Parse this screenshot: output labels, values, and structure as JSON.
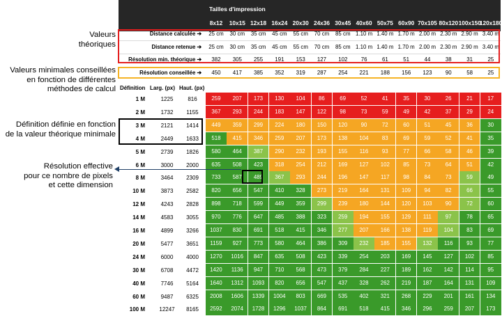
{
  "annotations": {
    "valeurs_theoriques": [
      "Valeurs",
      "théoriques"
    ],
    "valeurs_min": [
      "Valeurs minimales conseillées",
      "en fonction de différentes",
      "méthodes de calcul"
    ],
    "definition": [
      "Définition définie en fonction",
      "de la valeur théorique minimale"
    ],
    "resolution": [
      "Résolution effective",
      "pour ce nombre de pixels",
      "et cette dimension"
    ]
  },
  "header": {
    "title": "Tailles d'impression",
    "sizes": [
      "8x12",
      "10x15",
      "12x18",
      "16x24",
      "20x30",
      "24x36",
      "30x45",
      "40x60",
      "50x75",
      "60x90",
      "70x105",
      "80x120",
      "100x150",
      "120x180"
    ]
  },
  "theory_rows": [
    {
      "label": "Distance calculée ➔",
      "values": [
        "25 cm",
        "30 cm",
        "35 cm",
        "45 cm",
        "55 cm",
        "70 cm",
        "85 cm",
        "1.10 m",
        "1.40 m",
        "1.70 m",
        "2.00 m",
        "2.30 m",
        "2.90 m",
        "3.40 m"
      ]
    },
    {
      "label": "Distance retenue ➔",
      "values": [
        "25 cm",
        "30 cm",
        "35 cm",
        "45 cm",
        "55 cm",
        "70 cm",
        "85 cm",
        "1.10 m",
        "1.40 m",
        "1.70 m",
        "2.00 m",
        "2.30 m",
        "2.90 m",
        "3.40 m"
      ]
    },
    {
      "label": "Résolution min. théorique ➔",
      "values": [
        "382",
        "305",
        "255",
        "191",
        "153",
        "127",
        "102",
        "76",
        "61",
        "51",
        "44",
        "38",
        "31",
        "25"
      ]
    },
    {
      "label": "Résolution conseillée ➔",
      "values": [
        "450",
        "417",
        "385",
        "352",
        "319",
        "287",
        "254",
        "221",
        "188",
        "156",
        "123",
        "90",
        "58",
        "25"
      ]
    }
  ],
  "table": {
    "headers": {
      "definition": "Définition",
      "width": "Larg. (px)",
      "height": "Haut. (px)"
    },
    "colors": {
      "red": "#e61e1e",
      "orange": "#f5a623",
      "light_green": "#8bc34a",
      "dark_green": "#3a9a2a"
    },
    "rows": [
      {
        "def": "1 M",
        "w": "1225",
        "h": "816",
        "v": [
          "259",
          "207",
          "173",
          "130",
          "104",
          "86",
          "69",
          "52",
          "41",
          "35",
          "30",
          "26",
          "21",
          "17"
        ],
        "c": "RRRRRRRRRRRRRR"
      },
      {
        "def": "2 M",
        "w": "1732",
        "h": "1155",
        "v": [
          "367",
          "293",
          "244",
          "183",
          "147",
          "122",
          "98",
          "73",
          "59",
          "49",
          "42",
          "37",
          "29",
          "24"
        ],
        "c": "RRRRRRRRRRRRRR"
      },
      {
        "def": "3 M",
        "w": "2121",
        "h": "1414",
        "v": [
          "449",
          "359",
          "299",
          "224",
          "180",
          "150",
          "120",
          "90",
          "72",
          "60",
          "51",
          "45",
          "36",
          "30"
        ],
        "c": "OOOOOOOOOOOOOD"
      },
      {
        "def": "4 M",
        "w": "2449",
        "h": "1633",
        "v": [
          "518",
          "415",
          "346",
          "259",
          "207",
          "173",
          "138",
          "104",
          "83",
          "69",
          "59",
          "52",
          "41",
          "35"
        ],
        "c": "DOOOOOOOOOOOOD"
      },
      {
        "def": "5 M",
        "w": "2739",
        "h": "1826",
        "v": [
          "580",
          "464",
          "387",
          "290",
          "232",
          "193",
          "155",
          "116",
          "93",
          "77",
          "66",
          "58",
          "46",
          "39"
        ],
        "c": "DDLOOOOOOOOOOD"
      },
      {
        "def": "6 M",
        "w": "3000",
        "h": "2000",
        "v": [
          "635",
          "508",
          "423",
          "318",
          "254",
          "212",
          "169",
          "127",
          "102",
          "85",
          "73",
          "64",
          "51",
          "42"
        ],
        "c": "DDDOOOOOOOOOOD"
      },
      {
        "def": "8 M",
        "w": "3464",
        "h": "2309",
        "v": [
          "733",
          "587",
          "489",
          "367",
          "293",
          "244",
          "196",
          "147",
          "117",
          "98",
          "84",
          "73",
          "59",
          "49"
        ],
        "c": "DDDLOOOOOOOOLD"
      },
      {
        "def": "10 M",
        "w": "3873",
        "h": "2582",
        "v": [
          "820",
          "656",
          "547",
          "410",
          "328",
          "273",
          "219",
          "164",
          "131",
          "109",
          "94",
          "82",
          "66",
          "55"
        ],
        "c": "DDDDDOOOOOOOLD"
      },
      {
        "def": "12 M",
        "w": "4243",
        "h": "2828",
        "v": [
          "898",
          "718",
          "599",
          "449",
          "359",
          "299",
          "239",
          "180",
          "144",
          "120",
          "103",
          "90",
          "72",
          "60"
        ],
        "c": "DDDDDLOOOOOOLD"
      },
      {
        "def": "14 M",
        "w": "4583",
        "h": "3055",
        "v": [
          "970",
          "776",
          "647",
          "485",
          "388",
          "323",
          "259",
          "194",
          "155",
          "129",
          "111",
          "97",
          "78",
          "65"
        ],
        "c": "DDDDDDLOOOOLDD"
      },
      {
        "def": "16 M",
        "w": "4899",
        "h": "3266",
        "v": [
          "1037",
          "830",
          "691",
          "518",
          "415",
          "346",
          "277",
          "207",
          "166",
          "138",
          "119",
          "104",
          "83",
          "69"
        ],
        "c": "DDDDDDLOOOOLDD"
      },
      {
        "def": "20 M",
        "w": "5477",
        "h": "3651",
        "v": [
          "1159",
          "927",
          "773",
          "580",
          "464",
          "386",
          "309",
          "232",
          "185",
          "155",
          "132",
          "116",
          "93",
          "77"
        ],
        "c": "DDDDDDDLOOLDDD"
      },
      {
        "def": "24 M",
        "w": "6000",
        "h": "4000",
        "v": [
          "1270",
          "1016",
          "847",
          "635",
          "508",
          "423",
          "339",
          "254",
          "203",
          "169",
          "145",
          "127",
          "102",
          "85"
        ],
        "c": "DDDDDDDDDDDDDD"
      },
      {
        "def": "30 M",
        "w": "6708",
        "h": "4472",
        "v": [
          "1420",
          "1136",
          "947",
          "710",
          "568",
          "473",
          "379",
          "284",
          "227",
          "189",
          "162",
          "142",
          "114",
          "95"
        ],
        "c": "DDDDDDDDDDDDDD"
      },
      {
        "def": "40 M",
        "w": "7746",
        "h": "5164",
        "v": [
          "1640",
          "1312",
          "1093",
          "820",
          "656",
          "547",
          "437",
          "328",
          "262",
          "219",
          "187",
          "164",
          "131",
          "109"
        ],
        "c": "DDDDDDDDDDDDDD"
      },
      {
        "def": "60 M",
        "w": "9487",
        "h": "6325",
        "v": [
          "2008",
          "1606",
          "1339",
          "1004",
          "803",
          "669",
          "535",
          "402",
          "321",
          "268",
          "229",
          "201",
          "161",
          "134"
        ],
        "c": "DDDDDDDDDDDDDD"
      },
      {
        "def": "100 M",
        "w": "12247",
        "h": "8165",
        "v": [
          "2592",
          "2074",
          "1728",
          "1296",
          "1037",
          "864",
          "691",
          "518",
          "415",
          "346",
          "296",
          "259",
          "207",
          "173"
        ],
        "c": "DDDDDDDDDDDDDD"
      }
    ]
  }
}
